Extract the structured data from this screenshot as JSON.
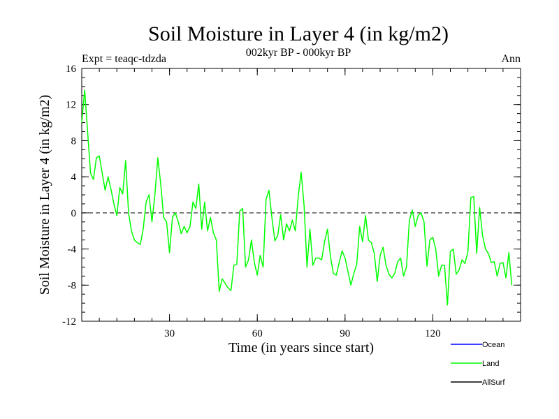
{
  "chart_data": {
    "type": "line",
    "title": "Soil Moisture in Layer 4 (in kg/m2)",
    "subtitle": "002kyr BP - 000kyr BP",
    "expt_label": "Expt = teaqc-tdzda",
    "season_label": "Ann",
    "xlabel": "Time (in years since start)",
    "ylabel": "Soil Moisture in Layer 4 (in kg/m2)",
    "xlim": [
      0,
      150
    ],
    "ylim": [
      -12,
      16
    ],
    "x_ticks": [
      30,
      60,
      90,
      120
    ],
    "x_tick_labels": [
      "30",
      "60",
      "90",
      "120"
    ],
    "y_ticks": [
      -12,
      -8,
      -4,
      0,
      4,
      8,
      12,
      16
    ],
    "y_tick_labels": [
      "-12",
      "-8",
      "-4",
      "0",
      "4",
      "8",
      "12",
      "16"
    ],
    "reference_line": 0,
    "legend": [
      {
        "name": "Ocean",
        "color": "#0000ff"
      },
      {
        "name": "Land",
        "color": "#00ff00"
      },
      {
        "name": "AllSurf",
        "color": "#000000"
      }
    ],
    "series": [
      {
        "name": "Land",
        "color": "#00ff00",
        "x_start": 0,
        "x_step": 1,
        "values": [
          10.0,
          13.6,
          9.0,
          4.4,
          3.7,
          6.1,
          6.3,
          4.4,
          2.5,
          4.0,
          2.6,
          1.0,
          -0.3,
          2.8,
          2.1,
          5.8,
          0.0,
          -2.0,
          -3.0,
          -3.3,
          -3.5,
          -1.8,
          1.2,
          2.0,
          -1.0,
          2.0,
          6.1,
          3.2,
          -0.5,
          -1.0,
          -4.4,
          -0.5,
          0.0,
          -1.0,
          -2.3,
          -1.5,
          -2.2,
          -1.5,
          1.2,
          0.5,
          3.2,
          -1.8,
          1.2,
          -2.0,
          -0.5,
          -2.2,
          -3.0,
          -8.7,
          -7.3,
          -7.8,
          -8.3,
          -8.6,
          -5.8,
          -5.7,
          0.2,
          0.5,
          -6.0,
          -5.2,
          -3.0,
          -5.5,
          -6.9,
          -4.7,
          -6.0,
          1.5,
          2.5,
          -0.5,
          -3.1,
          -2.5,
          -0.2,
          -3.0,
          -1.2,
          -2.0,
          -0.8,
          -2.0,
          1.8,
          4.5,
          0.8,
          -6.0,
          -1.8,
          -5.8,
          -5.0,
          -5.0,
          -5.2,
          -3.2,
          -1.8,
          -4.8,
          -6.7,
          -6.9,
          -5.5,
          -4.2,
          -5.0,
          -6.5,
          -8.0,
          -6.7,
          -5.7,
          -1.5,
          -3.2,
          -0.3,
          -3.0,
          -3.3,
          -4.5,
          -7.6,
          -4.7,
          -3.8,
          -5.8,
          -6.8,
          -7.2,
          -6.7,
          -5.4,
          -5.0,
          -7.0,
          -6.0,
          -0.8,
          0.3,
          -1.5,
          -0.3,
          0.0,
          -1.0,
          -5.9,
          -3.0,
          -2.7,
          -4.0,
          -7.0,
          -5.8,
          -5.8,
          -10.2,
          -4.3,
          -4.0,
          -6.8,
          -6.3,
          -5.2,
          -5.6,
          -4.3,
          1.7,
          1.8,
          -4.5,
          0.6,
          -2.5,
          -4.0,
          -4.5,
          -5.5,
          -5.4,
          -7.0,
          -5.6,
          -5.5,
          -7.2,
          -4.4,
          -8.0
        ]
      }
    ]
  }
}
